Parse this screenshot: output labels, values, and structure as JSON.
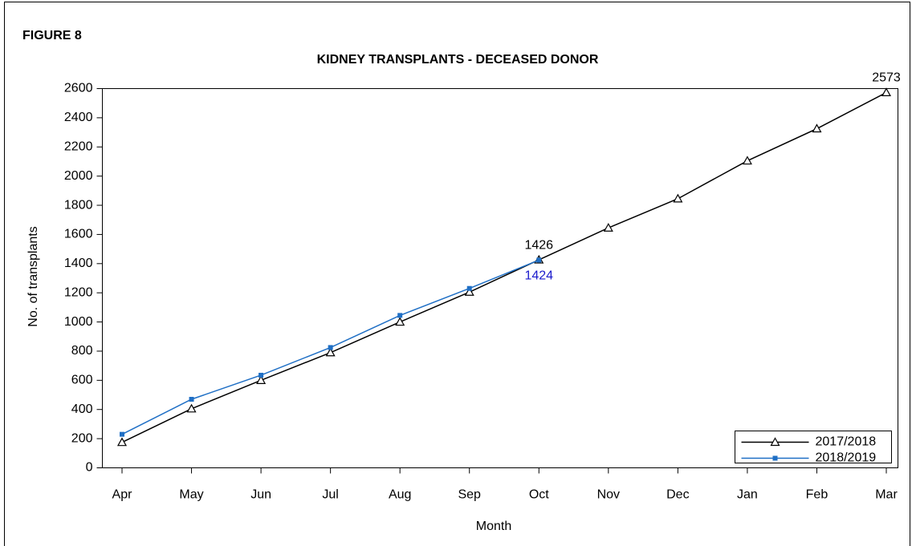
{
  "chart_data": {
    "type": "line",
    "figure_label": "FIGURE 8",
    "title": "KIDNEY TRANSPLANTS - DECEASED DONOR",
    "x_label": "Month",
    "y_label": "No. of transplants",
    "categories": [
      "Apr",
      "May",
      "Jun",
      "Jul",
      "Aug",
      "Sep",
      "Oct",
      "Nov",
      "Dec",
      "Jan",
      "Feb",
      "Mar"
    ],
    "series": [
      {
        "name": "2017/2018",
        "color": "#000000",
        "marker": "triangle",
        "values": [
          175,
          405,
          600,
          790,
          1000,
          1205,
          1426,
          1645,
          1845,
          2105,
          2325,
          2573
        ],
        "value_labels": [
          null,
          null,
          null,
          null,
          null,
          null,
          "1426",
          null,
          null,
          null,
          null,
          "2573"
        ]
      },
      {
        "name": "2018/2019",
        "color": "#1f6fc5",
        "marker": "square",
        "label_color": "#1a1acc",
        "values": [
          230,
          470,
          635,
          825,
          1045,
          1230,
          1424,
          null,
          null,
          null,
          null,
          null
        ],
        "value_labels": [
          null,
          null,
          null,
          null,
          null,
          null,
          "1424",
          null,
          null,
          null,
          null,
          null
        ]
      }
    ],
    "ylim": [
      0,
      2600
    ],
    "yticks": [
      0,
      200,
      400,
      600,
      800,
      1000,
      1200,
      1400,
      1600,
      1800,
      2000,
      2200,
      2400,
      2600
    ],
    "legend": "lower right"
  }
}
